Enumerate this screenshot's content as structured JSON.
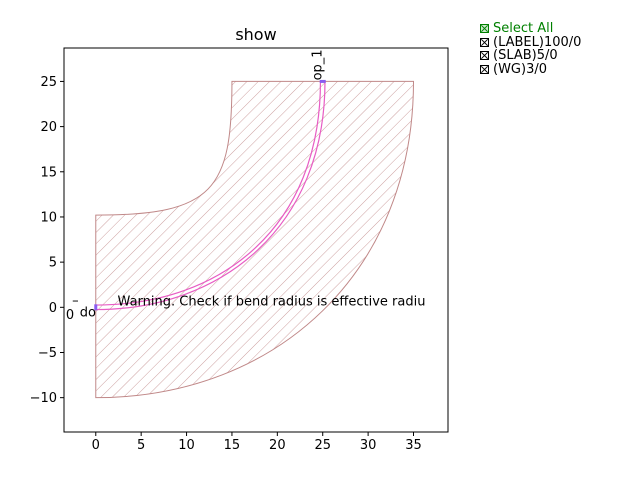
{
  "chart_data": {
    "type": "layout",
    "title": "show",
    "xlabel": "",
    "ylabel": "",
    "xlim": [
      -3.5,
      38.8
    ],
    "ylim": [
      -13.8,
      28.7
    ],
    "xticks": [
      0,
      5,
      10,
      15,
      20,
      25,
      30,
      35
    ],
    "yticks": [
      -10,
      -5,
      0,
      5,
      10,
      15,
      20,
      25
    ],
    "grid": false,
    "shapes": [
      {
        "name": "(SLAB)5/0",
        "kind": "bend-slab",
        "start": [
          0,
          0
        ],
        "end": [
          25,
          25
        ],
        "outer": {
          "x0": 0,
          "y_bottom": -10,
          "x_right": 35,
          "y_top": 25,
          "curve_mid": [
            28.5,
            1.5
          ]
        },
        "inner": {
          "x0": 0,
          "y_top": 10.2,
          "x_left": 15,
          "y_end": 25,
          "curve_mid": [
            12.4,
            11.5
          ]
        },
        "color": "#c08888"
      },
      {
        "name": "(WG)3/0",
        "kind": "bend-waveguide",
        "start": [
          0,
          0
        ],
        "end": [
          25,
          25
        ],
        "width": 0.5,
        "color": "#e85cc4"
      }
    ],
    "ports": [
      {
        "name": "o1",
        "label": "do",
        "x": 0,
        "y": 0,
        "color": "#8a5cf0"
      },
      {
        "name": "o2",
        "label": "op_1",
        "x": 25,
        "y": 25,
        "color": "#8a5cf0"
      }
    ],
    "annotations": [
      {
        "text": "Warning. Check if bend radius is effective radiu",
        "x": 2.4,
        "y": 0.2
      },
      {
        "text": "0",
        "x": -3.3,
        "y": -1.3
      },
      {
        "text": "–",
        "x": -2.6,
        "y": 0.3
      }
    ]
  },
  "legend": {
    "select_all": "Select All",
    "items": [
      "(LABEL)100/0",
      "(SLAB)5/0",
      "(WG)3/0"
    ],
    "select_color": "#008000",
    "item_color": "#000000"
  }
}
